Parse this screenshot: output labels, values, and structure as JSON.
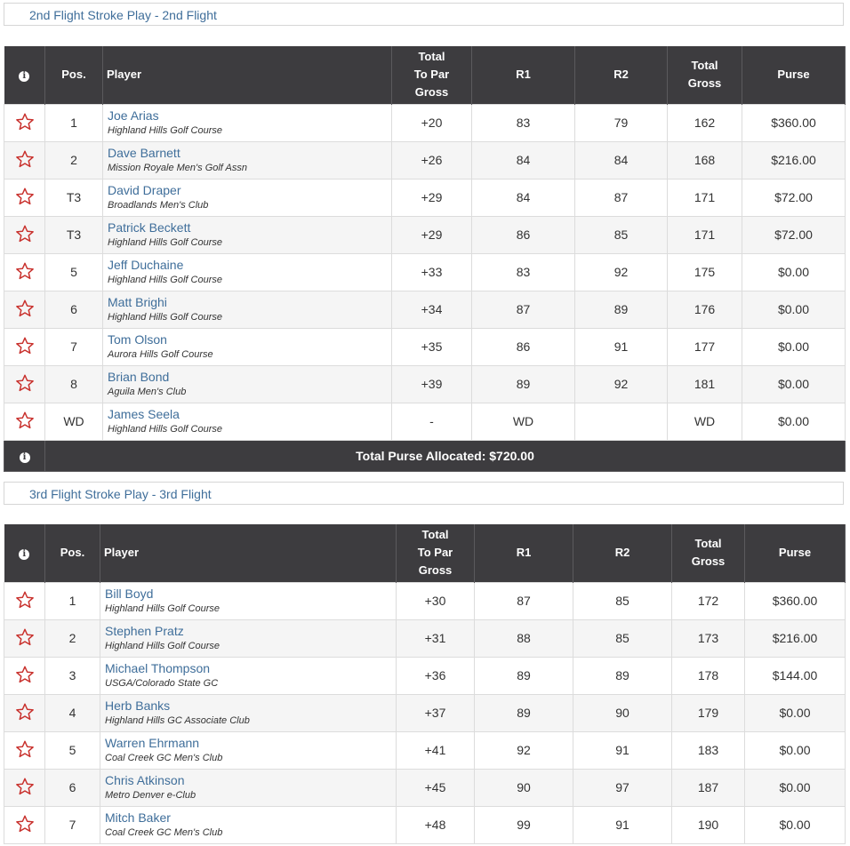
{
  "flights": [
    {
      "title": "2nd Flight Stroke Play - 2nd Flight",
      "headers": {
        "info_icon": "info-icon",
        "pos": "Pos.",
        "player": "Player",
        "topar_l1": "Total",
        "topar_l2": "To Par",
        "topar_l3": "Gross",
        "r1": "R1",
        "r2": "R2",
        "total_l1": "Total",
        "total_l2": "Gross",
        "purse": "Purse"
      },
      "rows": [
        {
          "pos": "1",
          "name": "Joe Arias",
          "club": "Highland Hills Golf Course",
          "topar": "+20",
          "r1": "83",
          "r2": "79",
          "total": "162",
          "purse": "$360.00"
        },
        {
          "pos": "2",
          "name": "Dave Barnett",
          "club": "Mission Royale Men's Golf Assn",
          "topar": "+26",
          "r1": "84",
          "r2": "84",
          "total": "168",
          "purse": "$216.00"
        },
        {
          "pos": "T3",
          "name": "David Draper",
          "club": "Broadlands Men's Club",
          "topar": "+29",
          "r1": "84",
          "r2": "87",
          "total": "171",
          "purse": "$72.00"
        },
        {
          "pos": "T3",
          "name": "Patrick Beckett",
          "club": "Highland Hills Golf Course",
          "topar": "+29",
          "r1": "86",
          "r2": "85",
          "total": "171",
          "purse": "$72.00"
        },
        {
          "pos": "5",
          "name": "Jeff Duchaine",
          "club": "Highland Hills Golf Course",
          "topar": "+33",
          "r1": "83",
          "r2": "92",
          "total": "175",
          "purse": "$0.00"
        },
        {
          "pos": "6",
          "name": "Matt Brighi",
          "club": "Highland Hills Golf Course",
          "topar": "+34",
          "r1": "87",
          "r2": "89",
          "total": "176",
          "purse": "$0.00"
        },
        {
          "pos": "7",
          "name": "Tom Olson",
          "club": "Aurora Hills Golf Course",
          "topar": "+35",
          "r1": "86",
          "r2": "91",
          "total": "177",
          "purse": "$0.00"
        },
        {
          "pos": "8",
          "name": "Brian Bond",
          "club": "Aguila Men's Club",
          "topar": "+39",
          "r1": "89",
          "r2": "92",
          "total": "181",
          "purse": "$0.00"
        },
        {
          "pos": "WD",
          "name": "James Seela",
          "club": "Highland Hills Golf Course",
          "topar": "-",
          "r1": "WD",
          "r2": "",
          "total": "WD",
          "purse": "$0.00"
        }
      ],
      "footer": "Total Purse Allocated: $720.00"
    },
    {
      "title": "3rd Flight Stroke Play - 3rd Flight",
      "headers": {
        "info_icon": "info-icon",
        "pos": "Pos.",
        "player": "Player",
        "topar_l1": "Total",
        "topar_l2": "To Par",
        "topar_l3": "Gross",
        "r1": "R1",
        "r2": "R2",
        "total_l1": "Total",
        "total_l2": "Gross",
        "purse": "Purse"
      },
      "rows": [
        {
          "pos": "1",
          "name": "Bill Boyd",
          "club": "Highland Hills Golf Course",
          "topar": "+30",
          "r1": "87",
          "r2": "85",
          "total": "172",
          "purse": "$360.00"
        },
        {
          "pos": "2",
          "name": "Stephen Pratz",
          "club": "Highland Hills Golf Course",
          "topar": "+31",
          "r1": "88",
          "r2": "85",
          "total": "173",
          "purse": "$216.00"
        },
        {
          "pos": "3",
          "name": "Michael Thompson",
          "club": "USGA/Colorado State GC",
          "topar": "+36",
          "r1": "89",
          "r2": "89",
          "total": "178",
          "purse": "$144.00"
        },
        {
          "pos": "4",
          "name": "Herb Banks",
          "club": "Highland Hills GC Associate Club",
          "topar": "+37",
          "r1": "89",
          "r2": "90",
          "total": "179",
          "purse": "$0.00"
        },
        {
          "pos": "5",
          "name": "Warren Ehrmann",
          "club": "Coal Creek GC Men's Club",
          "topar": "+41",
          "r1": "92",
          "r2": "91",
          "total": "183",
          "purse": "$0.00"
        },
        {
          "pos": "6",
          "name": "Chris Atkinson",
          "club": "Metro Denver e-Club",
          "topar": "+45",
          "r1": "90",
          "r2": "97",
          "total": "187",
          "purse": "$0.00"
        },
        {
          "pos": "7",
          "name": "Mitch Baker",
          "club": "Coal Creek GC Men's Club",
          "topar": "+48",
          "r1": "99",
          "r2": "91",
          "total": "190",
          "purse": "$0.00"
        }
      ]
    }
  ],
  "colors": {
    "header_bg": "#3d3c3f",
    "link": "#3f6e9a",
    "star": "#c8302c",
    "alt_row": "#f5f5f5"
  },
  "row_icon": "star-icon"
}
